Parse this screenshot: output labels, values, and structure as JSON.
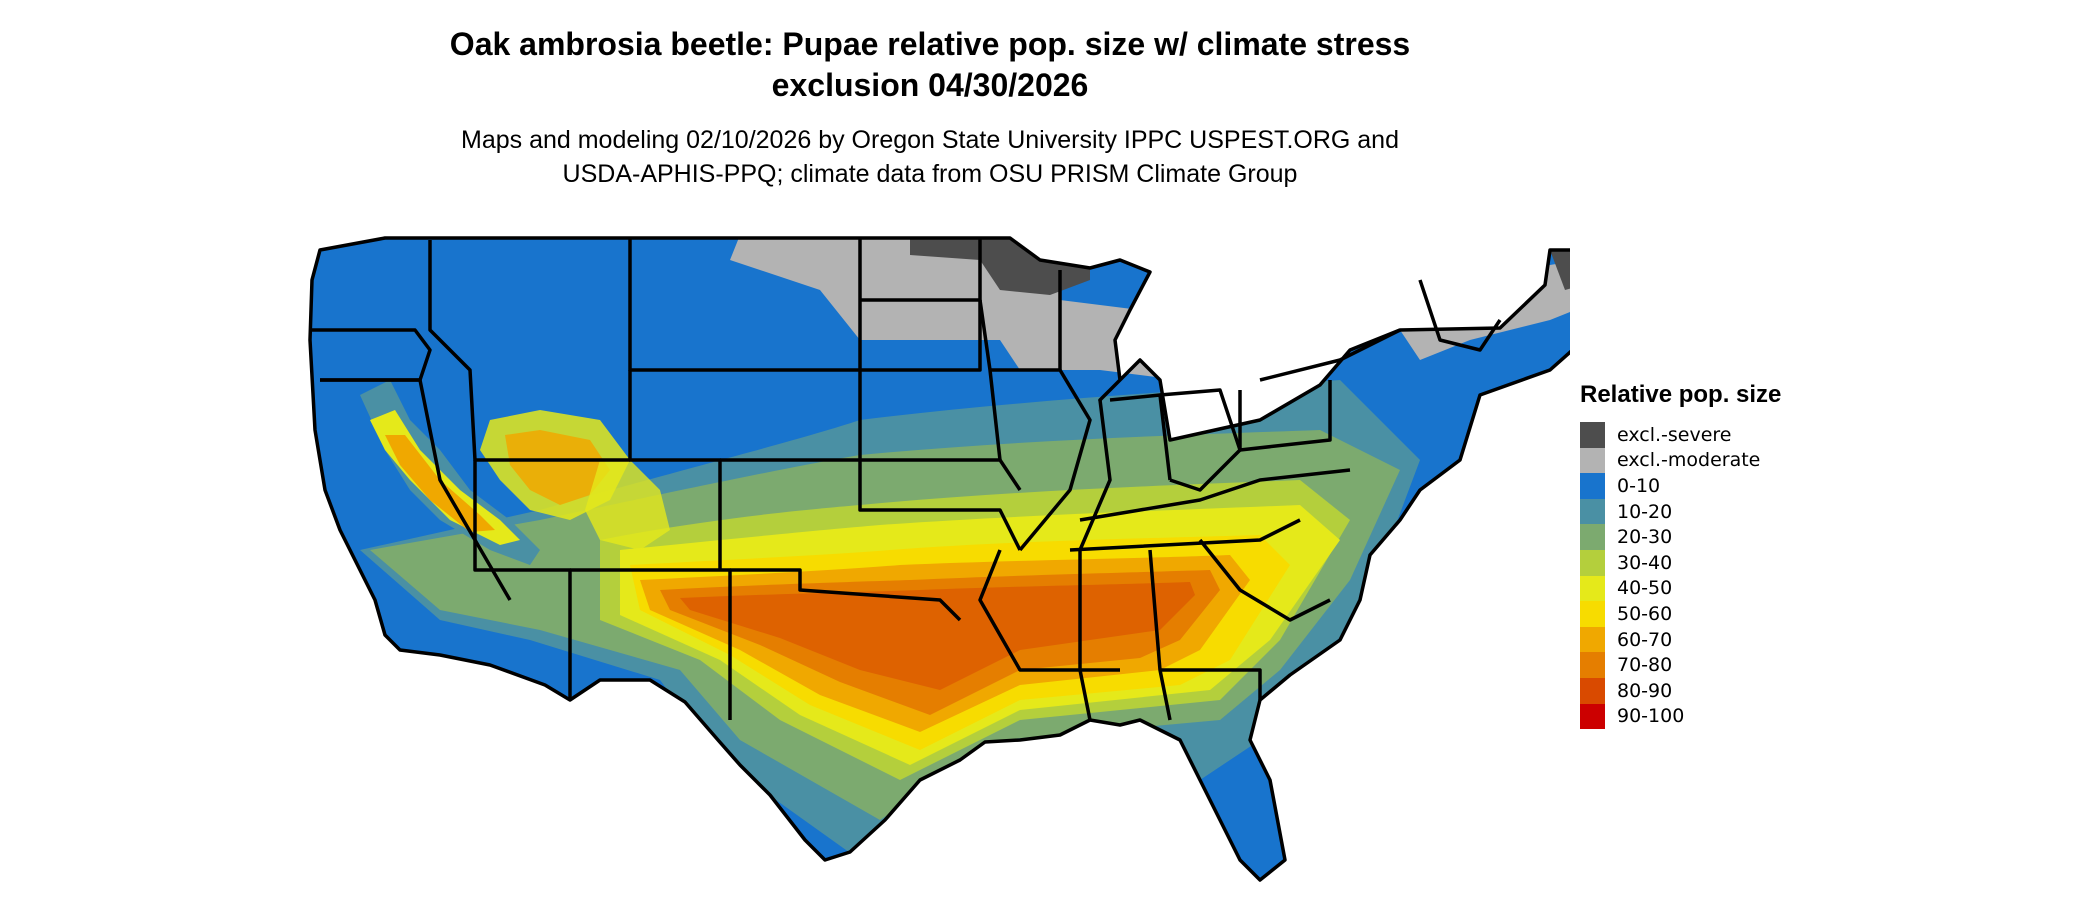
{
  "title": {
    "line1": "Oak ambrosia beetle: Pupae relative pop. size w/ climate stress",
    "line2": "exclusion 04/30/2026"
  },
  "subtitle": {
    "line1": "Maps and modeling 02/10/2026 by Oregon State University IPPC USPEST.ORG and",
    "line2": "USDA-APHIS-PPQ; climate data from OSU PRISM Climate Group"
  },
  "map": {
    "region": "Contiguous United States",
    "border_color": "#000000"
  },
  "legend": {
    "title": "Relative pop. size",
    "items": [
      {
        "label": "excl.-severe",
        "color": "#4d4d4d"
      },
      {
        "label": "excl.-moderate",
        "color": "#b3b3b3"
      },
      {
        "label": "0-10",
        "color": "#1874cd"
      },
      {
        "label": "10-20",
        "color": "#4a90a4"
      },
      {
        "label": "20-30",
        "color": "#7caa6f"
      },
      {
        "label": "30-40",
        "color": "#b4cf3c"
      },
      {
        "label": "40-50",
        "color": "#e5e91a"
      },
      {
        "label": "50-60",
        "color": "#f7dc00"
      },
      {
        "label": "60-70",
        "color": "#f0a800"
      },
      {
        "label": "70-80",
        "color": "#e57e00"
      },
      {
        "label": "80-90",
        "color": "#d94a00"
      },
      {
        "label": "90-100",
        "color": "#cc0000"
      }
    ]
  }
}
